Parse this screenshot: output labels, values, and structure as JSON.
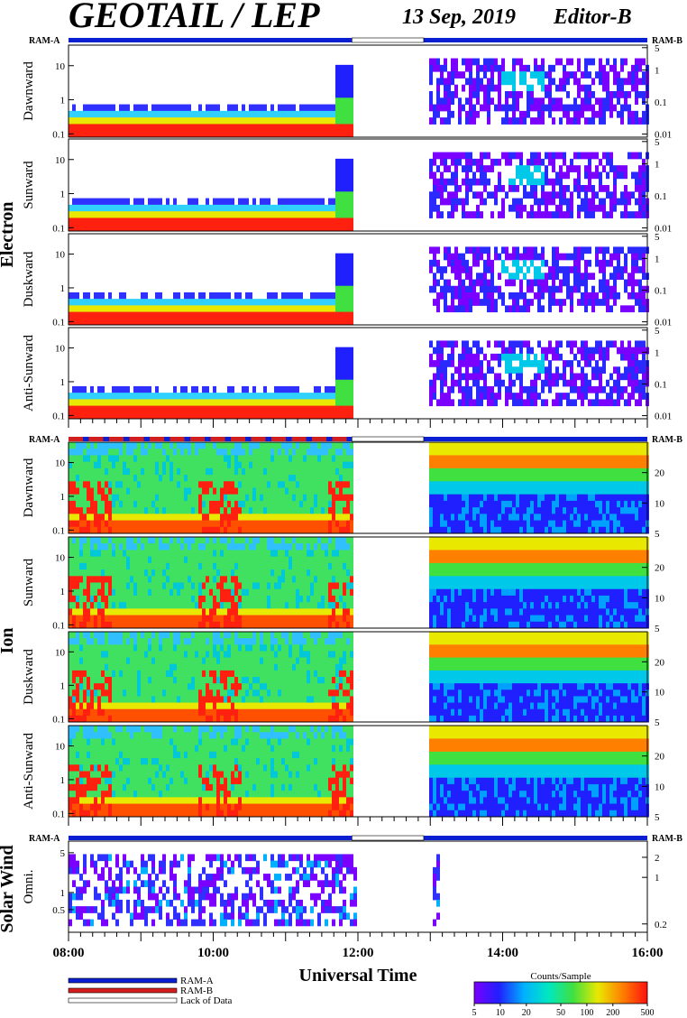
{
  "header": {
    "title": "GEOTAIL / LEP",
    "date": "13 Sep, 2019",
    "editor": "Editor-B"
  },
  "chart_data": {
    "type": "heatmap",
    "xlabel": "Universal Time",
    "x_ticks": [
      "08:00",
      "10:00",
      "12:00",
      "14:00",
      "16:00"
    ],
    "xlim": [
      "08:00",
      "16:00"
    ],
    "data_gap": [
      "11:55",
      "13:05"
    ],
    "groups": [
      {
        "name": "Electron",
        "mode_left": "RAM-A",
        "mode_right": "RAM-B",
        "left_ticks": [
          "10",
          "1",
          "0.1"
        ],
        "right_ticks": [
          "5",
          "1",
          "0.1",
          "0.01"
        ],
        "panels": [
          {
            "label": "Dawnward"
          },
          {
            "label": "Sunward"
          },
          {
            "label": "Duskward"
          },
          {
            "label": "Anti-Sunward"
          }
        ]
      },
      {
        "name": "Ion",
        "mode_left": "RAM-A",
        "mode_right": "RAM-B",
        "left_ticks": [
          "10",
          "1",
          "0.1"
        ],
        "right_ticks": [
          "20",
          "10",
          "5"
        ],
        "panels": [
          {
            "label": "Dawnward"
          },
          {
            "label": "Sunward"
          },
          {
            "label": "Duskward"
          },
          {
            "label": "Anti-Sunward"
          }
        ]
      },
      {
        "name": "Solar Wind",
        "mode_left": "RAM-A",
        "mode_right": "RAM-B",
        "left_ticks": [
          "5",
          "1",
          "0.5"
        ],
        "right_ticks": [
          "2",
          "1",
          "0.2"
        ],
        "panels": [
          {
            "label": "Omni."
          }
        ]
      }
    ],
    "legend": [
      {
        "label": "RAM-A",
        "color": "#0a1ed2"
      },
      {
        "label": "RAM-B",
        "color": "#d21e1e"
      },
      {
        "label": "Lack of Data",
        "color": "#ffffff"
      }
    ],
    "colorbar": {
      "title": "Counts/Sample",
      "ticks": [
        "5",
        "10",
        "20",
        "50",
        "100",
        "200",
        "500"
      ],
      "colors": [
        "#7a00ff",
        "#2020ff",
        "#00b0ff",
        "#00e8c0",
        "#40e040",
        "#e8e800",
        "#ff8000",
        "#ff1010"
      ]
    }
  }
}
